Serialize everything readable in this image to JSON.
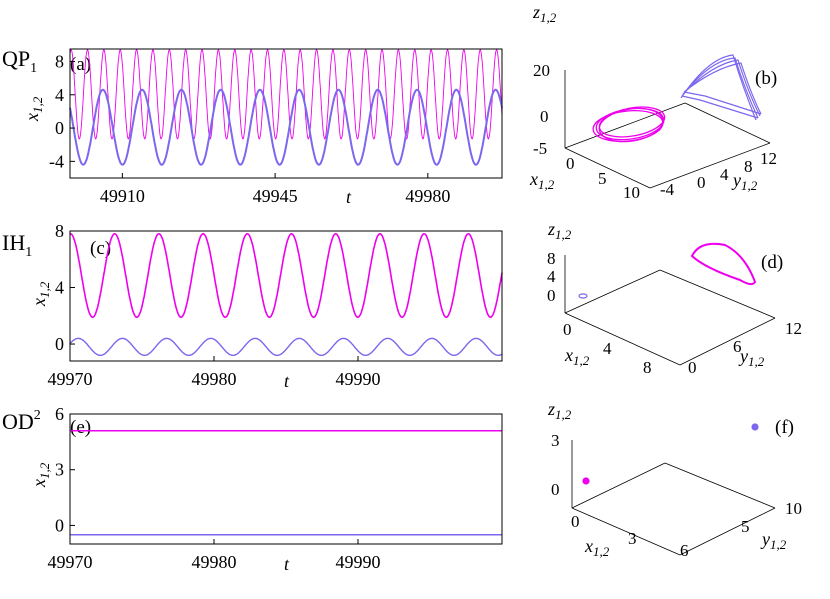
{
  "colors": {
    "magenta": "#ee00ee",
    "purple": "#7b68ee",
    "axis": "#000000"
  },
  "chart_data": [
    {
      "id": "a",
      "type": "line",
      "panel_label": "(a)",
      "row_label": "QP",
      "row_label_sub": "1",
      "xlabel": "t",
      "ylabel": "x",
      "ylabel_sub": "1,2",
      "xticks": [
        "49910",
        "49945",
        "49980"
      ],
      "xtick_values": [
        49910,
        49945,
        49980
      ],
      "yticks": [
        "8",
        "4",
        "0",
        "-4"
      ],
      "ytick_values": [
        8,
        4,
        0,
        -4
      ],
      "xlim": [
        49898,
        49997
      ],
      "ylim": [
        -6,
        9.5
      ],
      "series": [
        {
          "color": "#ee00ee",
          "kind": "sine",
          "period": 3.75,
          "min": -1.3,
          "max": 9.4,
          "phase": 0.3,
          "width": 0.9
        },
        {
          "color": "#7b68ee",
          "kind": "sine",
          "period": 9.0,
          "min": -4.4,
          "max": 4.6,
          "phase": 1.2,
          "width": 2
        }
      ]
    },
    {
      "id": "b",
      "type": "scatter",
      "panel_label": "(b)",
      "projection": "3d",
      "zlabel": "z",
      "zlabel_sub": "1,2",
      "xlabel": "x",
      "xlabel_sub": "1,2",
      "ylabel": "y",
      "ylabel_sub": "1,2",
      "zticks": [
        "20",
        "0",
        "-5"
      ],
      "xticks": [
        "0",
        "5",
        "10"
      ],
      "yticks": [
        "-4",
        "0",
        "4",
        "8",
        "12"
      ],
      "series": [
        {
          "color": "#ee00ee",
          "shape": "tilted ellipse orbit"
        },
        {
          "color": "#7b68ee",
          "shape": "curved sheet orbit"
        }
      ]
    },
    {
      "id": "c",
      "type": "line",
      "panel_label": "(c)",
      "row_label": "IH",
      "row_label_sub": "1",
      "xlabel": "t",
      "ylabel": "x",
      "ylabel_sub": "1,2",
      "xticks": [
        "49970",
        "49980",
        "49990"
      ],
      "xtick_values": [
        49970,
        49980,
        49990
      ],
      "yticks": [
        "8",
        "4",
        "0"
      ],
      "ytick_values": [
        8,
        4,
        0
      ],
      "xlim": [
        49970,
        50000
      ],
      "ylim": [
        -1.2,
        8
      ],
      "series": [
        {
          "color": "#ee00ee",
          "kind": "sine",
          "period": 3.07,
          "min": 1.9,
          "max": 7.8,
          "phase": 2.3,
          "width": 1.6
        },
        {
          "color": "#7b68ee",
          "kind": "sine",
          "period": 3.07,
          "min": -0.8,
          "max": 0.4,
          "phase": 1.2,
          "width": 1.4
        }
      ]
    },
    {
      "id": "d",
      "type": "scatter",
      "panel_label": "(d)",
      "projection": "3d",
      "zlabel": "z",
      "zlabel_sub": "1,2",
      "xlabel": "x",
      "xlabel_sub": "1,2",
      "ylabel": "y",
      "ylabel_sub": "1,2",
      "zticks": [
        "8",
        "4",
        "0"
      ],
      "xticks": [
        "0",
        "4",
        "8"
      ],
      "yticks": [
        "0",
        "6",
        "12"
      ],
      "series": [
        {
          "color": "#7b68ee",
          "shape": "small closed orbit"
        },
        {
          "color": "#ee00ee",
          "shape": "closed orbit"
        }
      ]
    },
    {
      "id": "e",
      "type": "line",
      "panel_label": "(e)",
      "row_label": "OD",
      "row_label_sub": "2",
      "xlabel": "t",
      "ylabel": "x",
      "ylabel_sub": "1,2",
      "xticks": [
        "49970",
        "49980",
        "49990"
      ],
      "xtick_values": [
        49970,
        49980,
        49990
      ],
      "yticks": [
        "6",
        "3",
        "0"
      ],
      "ytick_values": [
        6,
        3,
        0
      ],
      "xlim": [
        49970,
        50000
      ],
      "ylim": [
        -1,
        6
      ],
      "series": [
        {
          "color": "#ee00ee",
          "kind": "const",
          "value": 5.1,
          "width": 1.5
        },
        {
          "color": "#7b68ee",
          "kind": "const",
          "value": -0.5,
          "width": 1.5
        }
      ]
    },
    {
      "id": "f",
      "type": "scatter",
      "panel_label": "(f)",
      "projection": "3d",
      "zlabel": "z",
      "zlabel_sub": "1,2",
      "xlabel": "x",
      "xlabel_sub": "1,2",
      "ylabel": "y",
      "ylabel_sub": "1,2",
      "zticks": [
        "3",
        "0"
      ],
      "xticks": [
        "0",
        "3",
        "6"
      ],
      "yticks": [
        "5",
        "10"
      ],
      "series": [
        {
          "color": "#ee00ee",
          "shape": "fixed point"
        },
        {
          "color": "#7b68ee",
          "shape": "fixed point"
        }
      ]
    }
  ]
}
